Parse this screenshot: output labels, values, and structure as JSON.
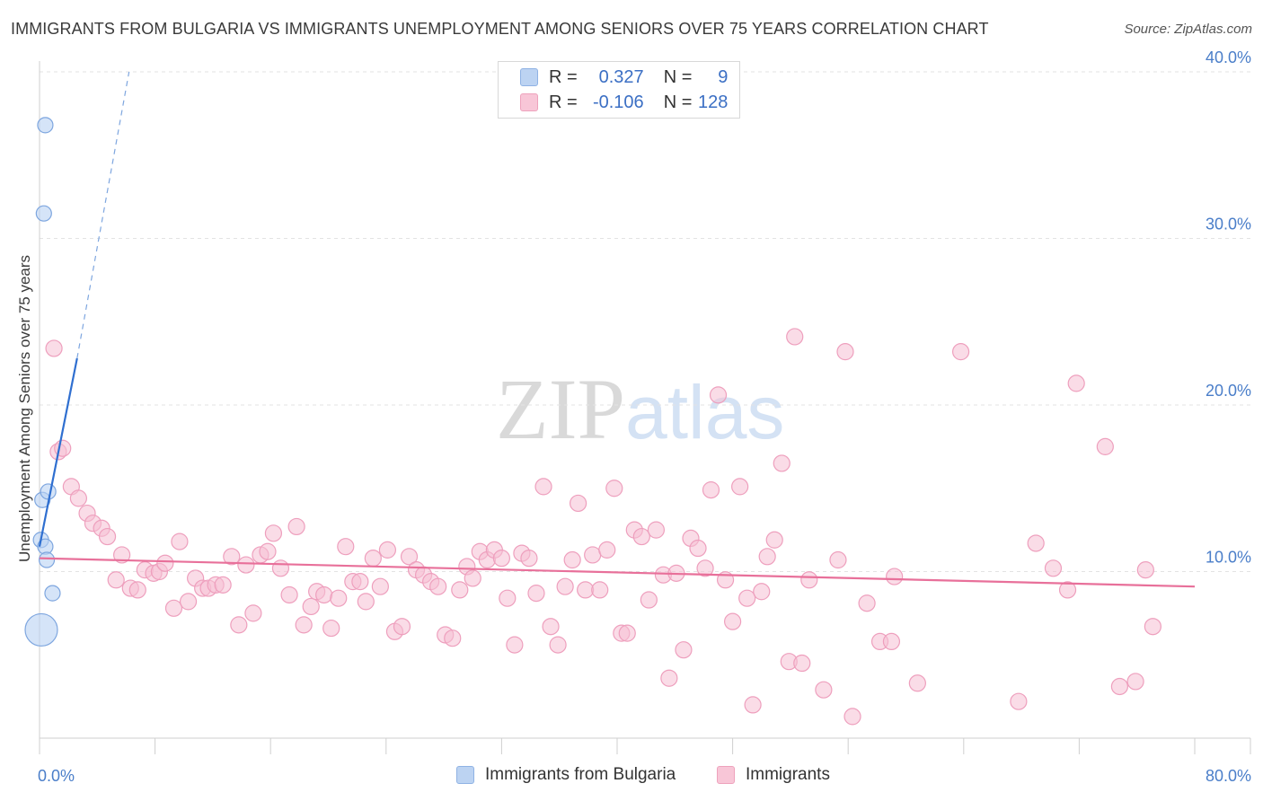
{
  "title": "IMMIGRANTS FROM BULGARIA VS IMMIGRANTS UNEMPLOYMENT AMONG SENIORS OVER 75 YEARS CORRELATION CHART",
  "source": "Source: ZipAtlas.com",
  "watermark": {
    "zip": "ZIP",
    "atlas": "atlas"
  },
  "legend": {
    "rows": [
      {
        "r_label": "R =",
        "r_value": "0.327",
        "n_label": "N =",
        "n_value": "9"
      },
      {
        "r_label": "R =",
        "r_value": "-0.106",
        "n_label": "N =",
        "n_value": "128"
      }
    ]
  },
  "bottom_legend": {
    "series1": "Immigrants from Bulgaria",
    "series2": "Immigrants"
  },
  "chart_data": {
    "type": "scatter",
    "title": "IMMIGRANTS FROM BULGARIA VS IMMIGRANTS UNEMPLOYMENT AMONG SENIORS OVER 75 YEARS CORRELATION CHART",
    "xlabel": "",
    "ylabel": "Unemployment Among Seniors over 75 years",
    "xlim": [
      0,
      80
    ],
    "ylim": [
      0,
      40
    ],
    "x_tick_labels": [
      "0.0%",
      "80.0%"
    ],
    "y_ticks": [
      10,
      20,
      30,
      40
    ],
    "y_tick_labels": [
      "10.0%",
      "20.0%",
      "30.0%",
      "40.0%"
    ],
    "colors": {
      "blue": "#9ec0ea",
      "blue_line": "#2f6fd0",
      "pink": "#f3a9c4",
      "pink_line": "#e8709a",
      "tick_text": "#4a7ec9"
    },
    "series": [
      {
        "name": "Immigrants from Bulgaria",
        "color": "#9ec0ea",
        "points": [
          {
            "x": 0.4,
            "y": 36.8,
            "s": 1
          },
          {
            "x": 0.3,
            "y": 31.5,
            "s": 1
          },
          {
            "x": 0.2,
            "y": 14.3,
            "s": 1
          },
          {
            "x": 0.6,
            "y": 14.8,
            "s": 1
          },
          {
            "x": 0.1,
            "y": 11.9,
            "s": 1
          },
          {
            "x": 0.4,
            "y": 11.5,
            "s": 1
          },
          {
            "x": 0.5,
            "y": 10.7,
            "s": 1
          },
          {
            "x": 0.9,
            "y": 8.7,
            "s": 1
          },
          {
            "x": 0.0,
            "y": 6.5,
            "s": 2
          }
        ],
        "trend": {
          "solid": [
            [
              0.0,
              11.5
            ],
            [
              2.6,
              22.8
            ]
          ],
          "dashed": [
            [
              2.6,
              22.8
            ],
            [
              6.2,
              40.0
            ]
          ]
        }
      },
      {
        "name": "Immigrants",
        "color": "#f3a9c4",
        "points": [
          {
            "x": 1.0,
            "y": 23.4
          },
          {
            "x": 1.3,
            "y": 17.2
          },
          {
            "x": 1.6,
            "y": 17.4
          },
          {
            "x": 2.2,
            "y": 15.1
          },
          {
            "x": 2.7,
            "y": 14.4
          },
          {
            "x": 3.3,
            "y": 13.5
          },
          {
            "x": 3.7,
            "y": 12.9
          },
          {
            "x": 4.3,
            "y": 12.6
          },
          {
            "x": 4.7,
            "y": 12.1
          },
          {
            "x": 5.7,
            "y": 11.0
          },
          {
            "x": 5.3,
            "y": 9.5
          },
          {
            "x": 6.3,
            "y": 9.0
          },
          {
            "x": 6.8,
            "y": 8.9
          },
          {
            "x": 7.3,
            "y": 10.1
          },
          {
            "x": 7.9,
            "y": 9.9
          },
          {
            "x": 8.3,
            "y": 10.0
          },
          {
            "x": 8.7,
            "y": 10.5
          },
          {
            "x": 9.3,
            "y": 7.8
          },
          {
            "x": 10.3,
            "y": 8.2
          },
          {
            "x": 9.7,
            "y": 11.8
          },
          {
            "x": 10.8,
            "y": 9.6
          },
          {
            "x": 11.3,
            "y": 9.0
          },
          {
            "x": 11.7,
            "y": 9.0
          },
          {
            "x": 12.2,
            "y": 9.2
          },
          {
            "x": 12.7,
            "y": 9.2
          },
          {
            "x": 13.3,
            "y": 10.9
          },
          {
            "x": 13.8,
            "y": 6.8
          },
          {
            "x": 14.3,
            "y": 10.4
          },
          {
            "x": 14.8,
            "y": 7.5
          },
          {
            "x": 15.3,
            "y": 11.0
          },
          {
            "x": 15.8,
            "y": 11.2
          },
          {
            "x": 16.2,
            "y": 12.3
          },
          {
            "x": 16.7,
            "y": 10.2
          },
          {
            "x": 17.3,
            "y": 8.6
          },
          {
            "x": 17.8,
            "y": 12.7
          },
          {
            "x": 18.3,
            "y": 6.8
          },
          {
            "x": 18.8,
            "y": 7.9
          },
          {
            "x": 19.2,
            "y": 8.8
          },
          {
            "x": 19.7,
            "y": 8.6
          },
          {
            "x": 20.2,
            "y": 6.6
          },
          {
            "x": 20.7,
            "y": 8.4
          },
          {
            "x": 21.2,
            "y": 11.5
          },
          {
            "x": 21.7,
            "y": 9.4
          },
          {
            "x": 22.2,
            "y": 9.4
          },
          {
            "x": 22.6,
            "y": 8.2
          },
          {
            "x": 23.1,
            "y": 10.8
          },
          {
            "x": 23.6,
            "y": 9.1
          },
          {
            "x": 24.1,
            "y": 11.3
          },
          {
            "x": 24.6,
            "y": 6.4
          },
          {
            "x": 25.1,
            "y": 6.7
          },
          {
            "x": 25.6,
            "y": 10.9
          },
          {
            "x": 26.1,
            "y": 10.1
          },
          {
            "x": 26.6,
            "y": 9.8
          },
          {
            "x": 27.1,
            "y": 9.4
          },
          {
            "x": 27.6,
            "y": 9.1
          },
          {
            "x": 28.1,
            "y": 6.2
          },
          {
            "x": 28.6,
            "y": 6.0
          },
          {
            "x": 29.1,
            "y": 8.9
          },
          {
            "x": 29.6,
            "y": 10.3
          },
          {
            "x": 30.0,
            "y": 9.6
          },
          {
            "x": 30.5,
            "y": 11.2
          },
          {
            "x": 31.0,
            "y": 10.7
          },
          {
            "x": 31.5,
            "y": 11.3
          },
          {
            "x": 32.0,
            "y": 10.8
          },
          {
            "x": 32.4,
            "y": 8.4
          },
          {
            "x": 32.9,
            "y": 5.6
          },
          {
            "x": 33.4,
            "y": 11.1
          },
          {
            "x": 33.9,
            "y": 10.8
          },
          {
            "x": 34.4,
            "y": 8.7
          },
          {
            "x": 34.9,
            "y": 15.1
          },
          {
            "x": 35.4,
            "y": 6.7
          },
          {
            "x": 35.9,
            "y": 5.6
          },
          {
            "x": 36.4,
            "y": 9.1
          },
          {
            "x": 36.9,
            "y": 10.7
          },
          {
            "x": 37.3,
            "y": 14.1
          },
          {
            "x": 37.8,
            "y": 8.9
          },
          {
            "x": 38.3,
            "y": 11.0
          },
          {
            "x": 38.8,
            "y": 8.9
          },
          {
            "x": 39.3,
            "y": 11.3
          },
          {
            "x": 39.8,
            "y": 15.0
          },
          {
            "x": 40.3,
            "y": 6.3
          },
          {
            "x": 40.7,
            "y": 6.3
          },
          {
            "x": 41.2,
            "y": 12.5
          },
          {
            "x": 41.7,
            "y": 12.1
          },
          {
            "x": 42.2,
            "y": 8.3
          },
          {
            "x": 42.7,
            "y": 12.5
          },
          {
            "x": 43.2,
            "y": 9.8
          },
          {
            "x": 43.6,
            "y": 3.6
          },
          {
            "x": 44.1,
            "y": 9.9
          },
          {
            "x": 44.6,
            "y": 5.3
          },
          {
            "x": 45.1,
            "y": 12.0
          },
          {
            "x": 45.6,
            "y": 11.4
          },
          {
            "x": 46.1,
            "y": 10.2
          },
          {
            "x": 46.5,
            "y": 14.9
          },
          {
            "x": 47.0,
            "y": 20.6
          },
          {
            "x": 47.5,
            "y": 9.5
          },
          {
            "x": 48.0,
            "y": 7.0
          },
          {
            "x": 48.5,
            "y": 15.1
          },
          {
            "x": 49.0,
            "y": 8.4
          },
          {
            "x": 49.4,
            "y": 2.0
          },
          {
            "x": 50.0,
            "y": 8.8
          },
          {
            "x": 50.4,
            "y": 10.9
          },
          {
            "x": 50.9,
            "y": 11.9
          },
          {
            "x": 51.4,
            "y": 16.5
          },
          {
            "x": 51.9,
            "y": 4.6
          },
          {
            "x": 52.3,
            "y": 24.1
          },
          {
            "x": 52.8,
            "y": 4.5
          },
          {
            "x": 53.3,
            "y": 9.5
          },
          {
            "x": 54.3,
            "y": 2.9
          },
          {
            "x": 55.3,
            "y": 10.7
          },
          {
            "x": 55.8,
            "y": 23.2
          },
          {
            "x": 56.3,
            "y": 1.3
          },
          {
            "x": 57.3,
            "y": 8.1
          },
          {
            "x": 58.2,
            "y": 5.8
          },
          {
            "x": 59.0,
            "y": 5.8
          },
          {
            "x": 59.2,
            "y": 9.7
          },
          {
            "x": 60.8,
            "y": 3.3
          },
          {
            "x": 63.8,
            "y": 23.2
          },
          {
            "x": 67.8,
            "y": 2.2
          },
          {
            "x": 70.2,
            "y": 10.2
          },
          {
            "x": 71.8,
            "y": 21.3
          },
          {
            "x": 73.8,
            "y": 17.5
          },
          {
            "x": 74.8,
            "y": 3.1
          },
          {
            "x": 75.9,
            "y": 3.4
          },
          {
            "x": 76.6,
            "y": 10.1
          },
          {
            "x": 77.1,
            "y": 6.7
          },
          {
            "x": 69.0,
            "y": 11.7
          },
          {
            "x": 71.2,
            "y": 8.9
          }
        ],
        "trend": {
          "solid": [
            [
              0.0,
              10.8
            ],
            [
              80.0,
              9.1
            ]
          ]
        }
      }
    ],
    "legend_position": "top-center",
    "grid": true
  }
}
